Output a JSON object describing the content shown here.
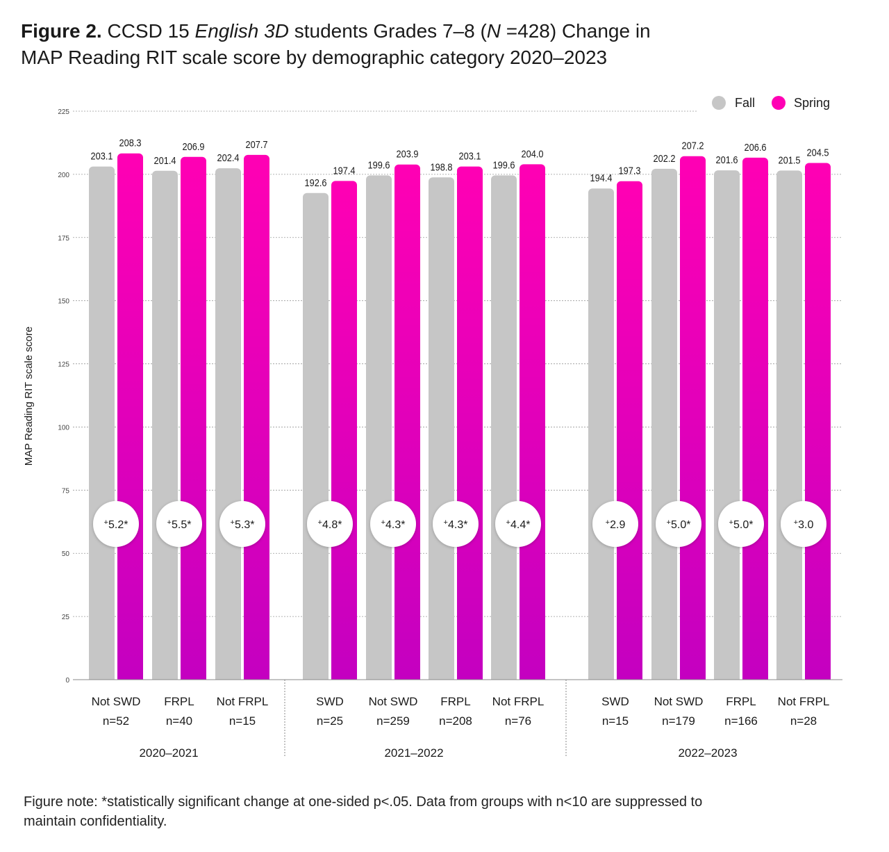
{
  "header": {
    "figure_label": "Figure 2.",
    "title_part1": "CCSD 15",
    "title_italic1": "English 3D",
    "title_part2": "students Grades 7–8 (",
    "title_italic2": "N",
    "title_part3": "=428) Change in",
    "title_line2": "MAP Reading RIT scale score by demographic category 2020–2023"
  },
  "note": "Figure note: *statistically significant change at one-sided p<.05. Data from groups with n<10 are suppressed to maintain confidentiality.",
  "colors": {
    "fall": "#c6c6c6",
    "spring_top": "#ff00b4",
    "spring_bottom": "#c400c0",
    "grid": "#999999",
    "text": "#1a1a1a"
  },
  "chart_data": {
    "type": "bar",
    "ylabel": "MAP Reading RIT scale score",
    "ylim": [
      0,
      225
    ],
    "yticks": [
      0,
      25,
      50,
      75,
      100,
      125,
      150,
      175,
      200,
      225
    ],
    "grid": true,
    "legend_position": "top-right",
    "series": [
      {
        "name": "Fall",
        "values": [
          203.1,
          201.4,
          202.4,
          192.6,
          199.6,
          198.8,
          199.6,
          194.4,
          202.2,
          201.6,
          201.5
        ]
      },
      {
        "name": "Spring",
        "values": [
          208.3,
          206.9,
          207.7,
          197.4,
          203.9,
          203.1,
          204.0,
          197.3,
          207.2,
          206.6,
          204.5
        ]
      }
    ],
    "fall_labels": [
      "203.1",
      "201.4",
      "202.4",
      "192.6",
      "199.6",
      "198.8",
      "199.6",
      "194.4",
      "202.2",
      "201.6",
      "201.5"
    ],
    "spring_labels": [
      "208.3",
      "206.9",
      "207.7",
      "197.4",
      "203.9",
      "203.1",
      "204.0",
      "197.3",
      "207.2",
      "206.6",
      "204.5"
    ],
    "categories": [
      "Not SWD",
      "FRPL",
      "Not FRPL",
      "SWD",
      "Not SWD",
      "FRPL",
      "Not FRPL",
      "SWD",
      "Not SWD",
      "FRPL",
      "Not FRPL"
    ],
    "sample_sizes": [
      "n=52",
      "n=40",
      "n=15",
      "n=25",
      "n=259",
      "n=208",
      "n=76",
      "n=15",
      "n=179",
      "n=166",
      "n=28"
    ],
    "change_sign": "+",
    "changes": [
      "5.2*",
      "5.5*",
      "5.3*",
      "4.8*",
      "4.3*",
      "4.3*",
      "4.4*",
      "2.9",
      "5.0*",
      "5.0*",
      "3.0"
    ],
    "groups": [
      {
        "label": "2020–2021",
        "count": 3
      },
      {
        "label": "2021–2022",
        "count": 4
      },
      {
        "label": "2022–2023",
        "count": 4
      }
    ]
  }
}
